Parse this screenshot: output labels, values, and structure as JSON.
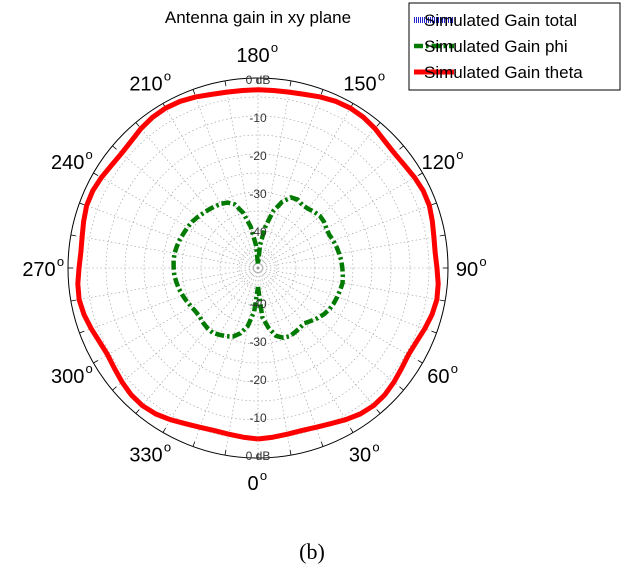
{
  "chart_data": {
    "type": "polar-line",
    "title": "Antenna gain in xy plane",
    "caption": "(b)",
    "radial_unit": "dB",
    "radial_range": [
      -50,
      0
    ],
    "radial_ticks": [
      {
        "value": 0,
        "label": "0 dB"
      },
      {
        "value": -10,
        "label": "-10"
      },
      {
        "value": -20,
        "label": "-20"
      },
      {
        "value": -30,
        "label": "-30"
      },
      {
        "value": -40,
        "label": "-40"
      }
    ],
    "angle_ticks": [
      {
        "angle": 0,
        "label": "0"
      },
      {
        "angle": 30,
        "label": "30"
      },
      {
        "angle": 60,
        "label": "60"
      },
      {
        "angle": 90,
        "label": "90"
      },
      {
        "angle": 120,
        "label": "120"
      },
      {
        "angle": 150,
        "label": "150"
      },
      {
        "angle": 180,
        "label": "180"
      },
      {
        "angle": 210,
        "label": "210"
      },
      {
        "angle": 240,
        "label": "240"
      },
      {
        "angle": 270,
        "label": "270"
      },
      {
        "angle": 300,
        "label": "300"
      },
      {
        "angle": 330,
        "label": "330"
      }
    ],
    "angle_unit_symbol": "o",
    "angle_zero_position": "bottom",
    "angle_direction": "counterclockwise",
    "grid": true,
    "legend_position": "top-right",
    "series": [
      {
        "name": "Simulated Gain total",
        "color": "#2222cc",
        "style": "dotted",
        "angles": [
          0,
          45,
          90,
          135,
          180,
          225,
          270,
          315,
          360
        ],
        "values": [
          -50,
          -50,
          -50,
          -50,
          -50,
          -50,
          -50,
          -50,
          -50
        ]
      },
      {
        "name": "Simulated Gain phi",
        "color": "#007a00",
        "style": "dash-dot",
        "angles": [
          0,
          5,
          10,
          15,
          20,
          25,
          30,
          35,
          40,
          45,
          50,
          55,
          60,
          65,
          70,
          75,
          80,
          85,
          90,
          95,
          100,
          105,
          110,
          115,
          120,
          125,
          130,
          135,
          140,
          145,
          150,
          155,
          160,
          165,
          170,
          175,
          180,
          185,
          190,
          195,
          200,
          205,
          210,
          215,
          220,
          225,
          230,
          235,
          240,
          245,
          250,
          255,
          260,
          265,
          270,
          275,
          280,
          285,
          290,
          295,
          300,
          305,
          310,
          315,
          320,
          325,
          330,
          335,
          340,
          345,
          350,
          355,
          360
        ],
        "values": [
          -45,
          -37,
          -34,
          -31.5,
          -30.5,
          -30.2,
          -30.5,
          -30.8,
          -31,
          -30.3,
          -29.5,
          -28.8,
          -28.3,
          -28,
          -27.8,
          -27.6,
          -27.4,
          -27.6,
          -27.8,
          -28,
          -28.3,
          -28.6,
          -28.9,
          -29.3,
          -29.2,
          -28.8,
          -28.7,
          -29.1,
          -29.6,
          -29.7,
          -29.2,
          -29.5,
          -31.5,
          -34.5,
          -39,
          -44,
          -49,
          -44,
          -39,
          -35,
          -32.2,
          -31,
          -30.5,
          -30.2,
          -29.9,
          -29.6,
          -29.2,
          -28.8,
          -28.6,
          -28.4,
          -28.1,
          -27.9,
          -27.7,
          -27.7,
          -27.8,
          -27.9,
          -28.2,
          -28.5,
          -28.9,
          -29.3,
          -29.7,
          -30,
          -30,
          -29.6,
          -29.3,
          -29.2,
          -29.7,
          -30.2,
          -30.8,
          -32.2,
          -34.5,
          -38.5,
          -45
        ]
      },
      {
        "name": "Simulated Gain theta",
        "color": "#ff0000",
        "style": "solid",
        "angles": [
          0,
          5,
          10,
          15,
          20,
          25,
          30,
          35,
          40,
          45,
          50,
          55,
          60,
          65,
          70,
          75,
          80,
          85,
          90,
          95,
          100,
          105,
          110,
          115,
          120,
          125,
          130,
          135,
          140,
          145,
          150,
          155,
          160,
          165,
          170,
          175,
          180,
          185,
          190,
          195,
          200,
          205,
          210,
          215,
          220,
          225,
          230,
          235,
          240,
          245,
          250,
          255,
          260,
          265,
          270,
          275,
          280,
          285,
          290,
          295,
          300,
          305,
          310,
          315,
          320,
          325,
          330,
          335,
          340,
          345,
          350,
          355,
          360
        ],
        "values": [
          -5,
          -5.3,
          -5.6,
          -5.7,
          -5.4,
          -4.8,
          -3.9,
          -3.1,
          -2.7,
          -2.8,
          -3.3,
          -3.9,
          -4.3,
          -4.0,
          -3.3,
          -2.6,
          -2.2,
          -2.4,
          -2.9,
          -3.2,
          -3.0,
          -2.5,
          -2.0,
          -2.0,
          -2.4,
          -2.9,
          -3.1,
          -2.8,
          -2.1,
          -1.6,
          -1.4,
          -1.6,
          -2.1,
          -2.7,
          -3.0,
          -3.1,
          -3.1,
          -3.1,
          -3.0,
          -2.7,
          -2.1,
          -1.6,
          -1.4,
          -1.6,
          -2.1,
          -2.8,
          -3.1,
          -2.9,
          -2.4,
          -2.0,
          -2.0,
          -2.5,
          -3.0,
          -3.2,
          -2.9,
          -2.4,
          -2.2,
          -2.6,
          -3.3,
          -4.0,
          -4.3,
          -3.9,
          -3.3,
          -2.8,
          -2.7,
          -3.1,
          -3.9,
          -4.8,
          -5.4,
          -5.7,
          -5.6,
          -5.3,
          -5
        ]
      }
    ]
  }
}
